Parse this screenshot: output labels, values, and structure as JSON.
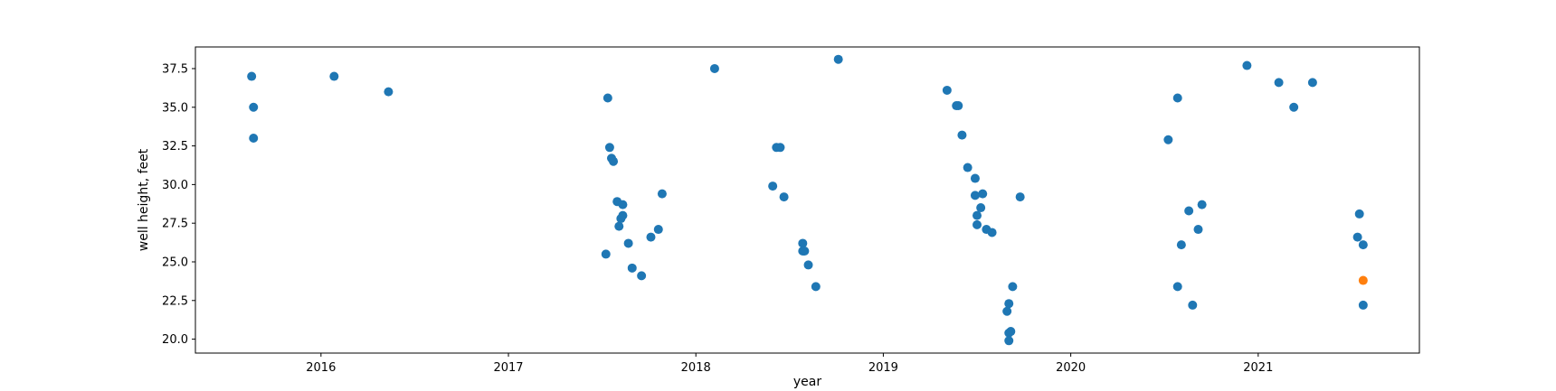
{
  "chart_data": {
    "type": "scatter",
    "title": "",
    "xlabel": "year",
    "ylabel": "well height, feet",
    "xlim": [
      2015.33,
      2021.86
    ],
    "ylim": [
      19.1,
      38.9
    ],
    "grid": false,
    "legend": "none",
    "x_ticks": [
      2016,
      2017,
      2018,
      2019,
      2020,
      2021
    ],
    "x_tick_labels": [
      "2016",
      "2017",
      "2018",
      "2019",
      "2020",
      "2021"
    ],
    "y_ticks": [
      20.0,
      22.5,
      25.0,
      27.5,
      30.0,
      32.5,
      35.0,
      37.5
    ],
    "y_tick_labels": [
      "20.0",
      "22.5",
      "25.0",
      "27.5",
      "30.0",
      "32.5",
      "35.0",
      "37.5"
    ],
    "series": [
      {
        "color": "#1f77b4",
        "points": [
          [
            2015.63,
            37.0
          ],
          [
            2015.64,
            35.0
          ],
          [
            2015.64,
            33.0
          ],
          [
            2016.07,
            37.0
          ],
          [
            2016.36,
            36.0
          ],
          [
            2017.53,
            35.6
          ],
          [
            2017.54,
            32.4
          ],
          [
            2017.55,
            31.7
          ],
          [
            2017.56,
            31.5
          ],
          [
            2017.58,
            28.9
          ],
          [
            2017.59,
            27.3
          ],
          [
            2017.6,
            27.8
          ],
          [
            2017.61,
            28.0
          ],
          [
            2017.61,
            28.7
          ],
          [
            2017.52,
            25.5
          ],
          [
            2017.64,
            26.2
          ],
          [
            2017.66,
            24.6
          ],
          [
            2017.71,
            24.1
          ],
          [
            2017.76,
            26.6
          ],
          [
            2017.8,
            27.1
          ],
          [
            2017.82,
            29.4
          ],
          [
            2018.1,
            37.5
          ],
          [
            2018.41,
            29.9
          ],
          [
            2018.43,
            32.4
          ],
          [
            2018.45,
            32.4
          ],
          [
            2018.47,
            29.2
          ],
          [
            2018.57,
            26.2
          ],
          [
            2018.57,
            25.7
          ],
          [
            2018.58,
            25.7
          ],
          [
            2018.6,
            24.8
          ],
          [
            2018.64,
            23.4
          ],
          [
            2018.76,
            38.1
          ],
          [
            2019.34,
            36.1
          ],
          [
            2019.39,
            35.1
          ],
          [
            2019.4,
            35.1
          ],
          [
            2019.42,
            33.2
          ],
          [
            2019.45,
            31.1
          ],
          [
            2019.49,
            30.4
          ],
          [
            2019.49,
            29.3
          ],
          [
            2019.5,
            28.0
          ],
          [
            2019.5,
            27.4
          ],
          [
            2019.52,
            28.5
          ],
          [
            2019.53,
            29.4
          ],
          [
            2019.55,
            27.1
          ],
          [
            2019.58,
            26.9
          ],
          [
            2019.66,
            21.8
          ],
          [
            2019.67,
            22.3
          ],
          [
            2019.67,
            20.4
          ],
          [
            2019.68,
            20.5
          ],
          [
            2019.67,
            19.9
          ],
          [
            2019.69,
            23.4
          ],
          [
            2019.73,
            29.2
          ],
          [
            2020.52,
            32.9
          ],
          [
            2020.57,
            35.6
          ],
          [
            2020.57,
            23.4
          ],
          [
            2020.59,
            26.1
          ],
          [
            2020.63,
            28.3
          ],
          [
            2020.65,
            22.2
          ],
          [
            2020.68,
            27.1
          ],
          [
            2020.7,
            28.7
          ],
          [
            2020.94,
            37.7
          ],
          [
            2021.11,
            36.6
          ],
          [
            2021.19,
            35.0
          ],
          [
            2021.29,
            36.6
          ],
          [
            2021.53,
            26.6
          ],
          [
            2021.54,
            28.1
          ],
          [
            2021.56,
            26.1
          ],
          [
            2021.56,
            22.2
          ]
        ]
      },
      {
        "color": "#ff7f0e",
        "points": [
          [
            2021.56,
            23.8
          ]
        ]
      }
    ]
  }
}
